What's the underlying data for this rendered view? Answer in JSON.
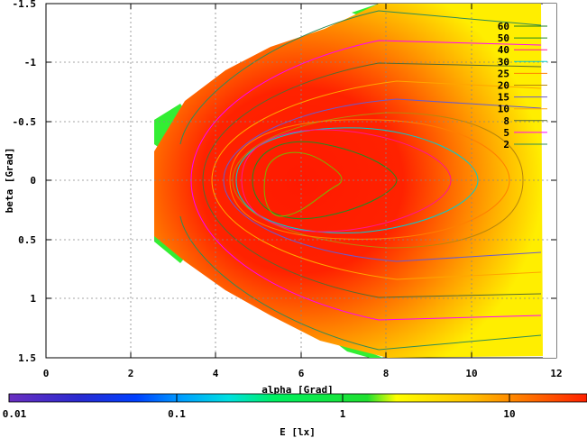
{
  "chart_data": {
    "type": "heatmap",
    "xlabel": "alpha [Grad]",
    "ylabel": "beta [Grad]",
    "xlim": [
      0,
      12
    ],
    "ylim": [
      -1.5,
      1.5
    ],
    "y_axis_inverted": true,
    "x_ticks": [
      "0",
      "2",
      "4",
      "6",
      "8",
      "10",
      "12"
    ],
    "y_ticks": [
      "-1.5",
      "-1",
      "-0.5",
      "0",
      "0.5",
      "1",
      "1.5"
    ],
    "grid": true,
    "legend_position": "top-right",
    "colorbar": {
      "label": "E [lx]",
      "scale": "log",
      "range": [
        0.01,
        30
      ],
      "ticks": [
        "0.01",
        "0.1",
        "1",
        "10"
      ]
    },
    "contour_levels": [
      {
        "label": "60",
        "color": "#1a7f1a"
      },
      {
        "label": "50",
        "color": "#228b22"
      },
      {
        "label": "40",
        "color": "#ff1493"
      },
      {
        "label": "30",
        "color": "#00ced1"
      },
      {
        "label": "25",
        "color": "#ff7f00"
      },
      {
        "label": "20",
        "color": "#b8860b"
      },
      {
        "label": "15",
        "color": "#6a5acd"
      },
      {
        "label": "10",
        "color": "#ffa500"
      },
      {
        "label": "8",
        "color": "#556b2f"
      },
      {
        "label": "5",
        "color": "#ff00ff"
      },
      {
        "label": "2",
        "color": "#2e8b57"
      }
    ],
    "illuminated_region": {
      "alpha_range": [
        2.6,
        11.7
      ],
      "peak": {
        "alpha": 5.9,
        "beta": 0.0
      }
    }
  }
}
